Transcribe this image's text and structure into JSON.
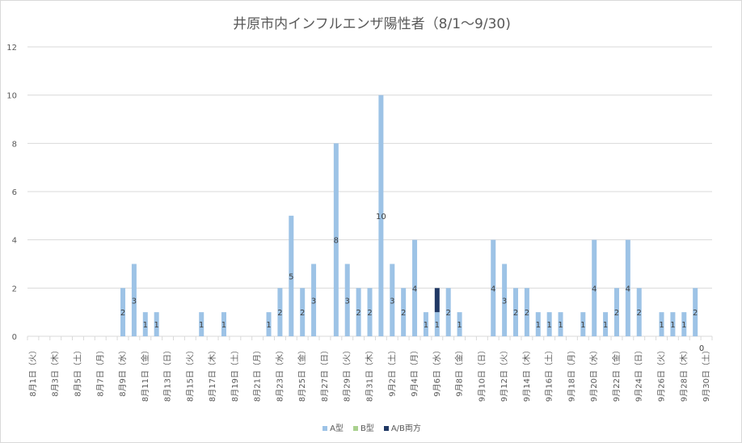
{
  "chart_data": {
    "type": "bar",
    "stacked": true,
    "title": "井原市内インフルエンザ陽性者（8/1～9/30)",
    "xlabel": "",
    "ylabel": "",
    "ylim": [
      0,
      12
    ],
    "yticks": [
      0,
      2,
      4,
      6,
      8,
      10,
      12
    ],
    "grid": true,
    "legend_position": "bottom",
    "start_date": "2023-08-01",
    "categories": [
      "8/1",
      "8/2",
      "8/3",
      "8/4",
      "8/5",
      "8/6",
      "8/7",
      "8/8",
      "8/9",
      "8/10",
      "8/11",
      "8/12",
      "8/13",
      "8/14",
      "8/15",
      "8/16",
      "8/17",
      "8/18",
      "8/19",
      "8/20",
      "8/21",
      "8/22",
      "8/23",
      "8/24",
      "8/25",
      "8/26",
      "8/27",
      "8/28",
      "8/29",
      "8/30",
      "8/31",
      "9/1",
      "9/2",
      "9/3",
      "9/4",
      "9/5",
      "9/6",
      "9/7",
      "9/8",
      "9/9",
      "9/10",
      "9/11",
      "9/12",
      "9/13",
      "9/14",
      "9/15",
      "9/16",
      "9/17",
      "9/18",
      "9/19",
      "9/20",
      "9/21",
      "9/22",
      "9/23",
      "9/24",
      "9/25",
      "9/26",
      "9/27",
      "9/28",
      "9/29",
      "9/30"
    ],
    "tick_labels": [
      "8月1日（火）",
      "8月3日（木）",
      "8月5日（土）",
      "8月7日（月）",
      "8月9日（水）",
      "8月11日（金）",
      "8月13日（日）",
      "8月15日（火）",
      "8月17日（木）",
      "8月19日（土）",
      "8月21日（月）",
      "8月23日（水）",
      "8月25日（金）",
      "8月27日（日）",
      "8月29日（火）",
      "8月31日（木）",
      "9月2日（土）",
      "9月4日（月）",
      "9月6日（水）",
      "9月8日（金）",
      "9月10日（日）",
      "9月12日（火）",
      "9月14日（木）",
      "9月16日（土）",
      "9月18日（月）",
      "9月20日（水）",
      "9月22日（金）",
      "9月24日（日）",
      "9月26日（火）",
      "9月28日（木）",
      "9月30日（土）"
    ],
    "series": [
      {
        "name": "A型",
        "color": "#9dc3e6",
        "values": [
          0,
          0,
          0,
          0,
          0,
          0,
          0,
          0,
          2,
          3,
          1,
          1,
          0,
          0,
          0,
          1,
          0,
          1,
          0,
          0,
          0,
          1,
          2,
          5,
          2,
          3,
          0,
          8,
          3,
          2,
          2,
          10,
          3,
          2,
          4,
          1,
          1,
          2,
          1,
          0,
          0,
          4,
          3,
          2,
          2,
          1,
          1,
          1,
          0,
          1,
          4,
          1,
          2,
          4,
          2,
          0,
          1,
          1,
          1,
          2,
          0
        ]
      },
      {
        "name": "B型",
        "color": "#a9d18e",
        "values": [
          0,
          0,
          0,
          0,
          0,
          0,
          0,
          0,
          0,
          0,
          0,
          0,
          0,
          0,
          0,
          0,
          0,
          0,
          0,
          0,
          0,
          0,
          0,
          0,
          0,
          0,
          0,
          0,
          0,
          0,
          0,
          0,
          0,
          0,
          0,
          0,
          0,
          0,
          0,
          0,
          0,
          0,
          0,
          0,
          0,
          0,
          0,
          0,
          0,
          0,
          0,
          0,
          0,
          0,
          0,
          0,
          0,
          0,
          0,
          0,
          0
        ]
      },
      {
        "name": "A/B両方",
        "color": "#203864",
        "values": [
          0,
          0,
          0,
          0,
          0,
          0,
          0,
          0,
          0,
          0,
          0,
          0,
          0,
          0,
          0,
          0,
          0,
          0,
          0,
          0,
          0,
          0,
          0,
          0,
          0,
          0,
          0,
          0,
          0,
          0,
          0,
          0,
          0,
          0,
          0,
          0,
          1,
          0,
          0,
          0,
          0,
          0,
          0,
          0,
          0,
          0,
          0,
          0,
          0,
          0,
          0,
          0,
          0,
          0,
          0,
          0,
          0,
          0,
          0,
          0,
          0
        ]
      }
    ]
  }
}
